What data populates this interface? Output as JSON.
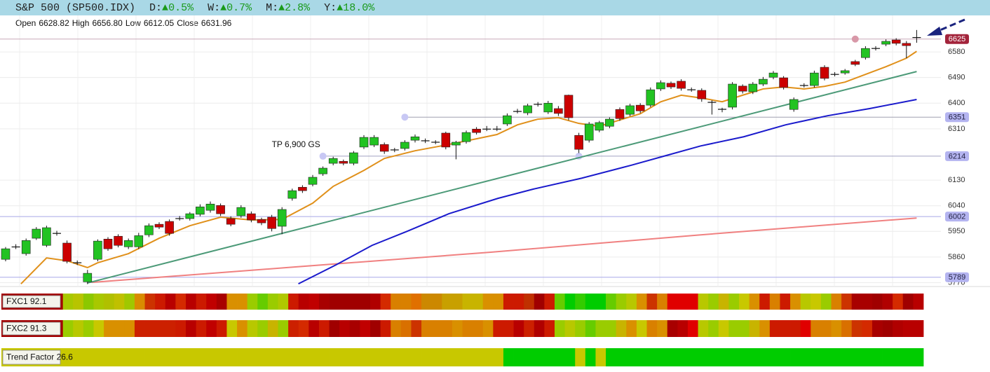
{
  "header": {
    "title": "S&P 500 (SP500.IDX)",
    "changes": [
      {
        "label": "D:",
        "arrow": "▲",
        "value": "0.5%"
      },
      {
        "label": "W:",
        "arrow": "▲",
        "value": "0.7%"
      },
      {
        "label": "M:",
        "arrow": "▲",
        "value": "2.8%"
      },
      {
        "label": "Y:",
        "arrow": "▲",
        "value": "18.0%"
      }
    ]
  },
  "ohlc": [
    {
      "label": "Open",
      "value": "6628.82"
    },
    {
      "label": "High",
      "value": "6656.80"
    },
    {
      "label": "Low",
      "value": "6612.05"
    },
    {
      "label": "Close",
      "value": "6631.96"
    }
  ],
  "chart_data": {
    "type": "candlestick",
    "up_color": "#22c322",
    "down_color": "#cc0000",
    "grid": true,
    "ylim": [
      5759,
      6708
    ],
    "yticks": [
      5770,
      5860,
      5950,
      6040,
      6130,
      6310,
      6400,
      6490,
      6580
    ],
    "open": [
      5852,
      5894,
      5872,
      5926,
      5901,
      5942,
      5909,
      5839,
      5773,
      5852,
      5923,
      5933,
      5896,
      5896,
      5938,
      5975,
      5985,
      5994,
      5995,
      6010,
      6024,
      6041,
      5995,
      6005,
      6012,
      5992,
      6000,
      5968,
      6066,
      6105,
      6115,
      6152,
      6189,
      6196,
      6189,
      6246,
      6253,
      6255,
      6235,
      6241,
      6270,
      6267,
      6262,
      6295,
      6253,
      6265,
      6309,
      6308,
      6308,
      6327,
      6370,
      6366,
      6395,
      6369,
      6381,
      6428,
      6287,
      6270,
      6305,
      6319,
      6378,
      6361,
      6393,
      6393,
      6450,
      6470,
      6477,
      6446,
      6445,
      6402,
      6381,
      6386,
      6460,
      6440,
      6467,
      6491,
      6489,
      6378,
      6461,
      6462,
      6526,
      6500,
      6506,
      6546,
      6560,
      6591,
      6607,
      6622,
      6610,
      6628.82
    ],
    "close": [
      5889,
      5897,
      5918,
      5958,
      5963,
      5944,
      5845,
      5841,
      5803,
      5916,
      5889,
      5901,
      5918,
      5935,
      5970,
      5965,
      5943,
      5996,
      6012,
      6036,
      6046,
      6012,
      5975,
      6034,
      5990,
      5980,
      5960,
      6027,
      6093,
      6093,
      6140,
      6172,
      6206,
      6189,
      6226,
      6280,
      6280,
      6231,
      6237,
      6263,
      6282,
      6269,
      6264,
      6246,
      6263,
      6297,
      6297,
      6310,
      6310,
      6356,
      6372,
      6391,
      6397,
      6400,
      6364,
      6349,
      6238,
      6327,
      6332,
      6344,
      6346,
      6391,
      6373,
      6447,
      6472,
      6457,
      6452,
      6448,
      6415,
      6404,
      6376,
      6467,
      6442,
      6467,
      6484,
      6506,
      6455,
      6413,
      6463,
      6506,
      6487,
      6502,
      6514,
      6536,
      6592,
      6593,
      6617,
      6610,
      6602,
      6631.96
    ],
    "high": [
      5895,
      5905,
      5925,
      5965,
      5970,
      5952,
      5918,
      5848,
      5815,
      5922,
      5930,
      5940,
      5925,
      5945,
      5978,
      5982,
      5992,
      6004,
      6018,
      6045,
      6055,
      6048,
      6003,
      6042,
      6020,
      5998,
      6008,
      6035,
      6100,
      6112,
      6148,
      6178,
      6212,
      6202,
      6232,
      6288,
      6288,
      6262,
      6243,
      6270,
      6290,
      6276,
      6270,
      6300,
      6268,
      6304,
      6316,
      6320,
      6320,
      6364,
      6380,
      6398,
      6404,
      6408,
      6390,
      6430,
      6296,
      6334,
      6338,
      6350,
      6385,
      6398,
      6400,
      6455,
      6480,
      6476,
      6484,
      6455,
      6452,
      6410,
      6384,
      6474,
      6466,
      6474,
      6492,
      6513,
      6495,
      6420,
      6470,
      6514,
      6533,
      6509,
      6520,
      6552,
      6600,
      6600,
      6624,
      6628,
      6618,
      6656.8
    ],
    "low": [
      5845,
      5888,
      5865,
      5920,
      5895,
      5935,
      5838,
      5832,
      5765,
      5845,
      5882,
      5894,
      5888,
      5888,
      5930,
      5958,
      5935,
      5988,
      5988,
      6003,
      6016,
      6004,
      5968,
      5998,
      5982,
      5972,
      5950,
      5940,
      6058,
      6085,
      6108,
      6145,
      6182,
      6182,
      6182,
      6239,
      6246,
      6222,
      6228,
      6234,
      6262,
      6260,
      6256,
      6238,
      6203,
      6258,
      6290,
      6302,
      6302,
      6320,
      6364,
      6358,
      6388,
      6362,
      6355,
      6340,
      6225,
      6262,
      6298,
      6312,
      6338,
      6354,
      6365,
      6386,
      6443,
      6450,
      6444,
      6440,
      6405,
      6360,
      6368,
      6378,
      6434,
      6432,
      6460,
      6484,
      6448,
      6370,
      6455,
      6455,
      6480,
      6494,
      6500,
      6530,
      6553,
      6585,
      6600,
      6603,
      6558,
      6612.05
    ],
    "lines": [
      {
        "color": "#f08080",
        "x": [
          8.4,
          28.2,
          47.4,
          67.9,
          89
        ],
        "values": [
          5771,
          5825,
          5877,
          5938,
          5997
        ]
      },
      {
        "color": "#4c9a78",
        "x": [
          8,
          89
        ],
        "values": [
          5769,
          6511
        ]
      },
      {
        "color": "#1a1acc",
        "x": [
          28.6,
          32.3,
          35.8,
          39.2,
          43.3,
          48.1,
          51.5,
          56.3,
          61.1,
          64.5,
          67.9,
          72.1,
          76.2,
          80.3,
          84.4,
          89
        ],
        "values": [
          5766,
          5833,
          5901,
          5950,
          6012,
          6066,
          6098,
          6137,
          6182,
          6216,
          6250,
          6282,
          6324,
          6356,
          6381,
          6413
        ]
      },
      {
        "color": "#e0901a",
        "x": [
          1.5,
          4,
          6,
          8,
          9,
          12,
          15,
          18,
          21,
          24,
          27,
          30,
          32,
          35,
          37,
          40,
          43,
          46,
          48,
          50,
          52,
          54,
          56,
          58,
          60,
          62,
          64,
          66,
          68,
          70,
          72,
          74,
          76,
          78,
          80,
          82,
          84,
          86,
          88,
          89
        ],
        "values": [
          5766,
          5857,
          5847,
          5823,
          5840,
          5872,
          5926,
          5970,
          6000,
          5990,
          5992,
          6049,
          6108,
          6164,
          6206,
          6233,
          6253,
          6275,
          6290,
          6324,
          6344,
          6349,
          6329,
          6319,
          6341,
          6363,
          6405,
          6428,
          6418,
          6405,
          6428,
          6450,
          6457,
          6450,
          6459,
          6474,
          6501,
          6528,
          6558,
          6582
        ]
      }
    ],
    "levels": [
      {
        "value": 6625,
        "color": "#a3243b",
        "text_color": "#ffffff",
        "line_color": "#c8a8b8",
        "dot_color": "#d898a8",
        "from": 0,
        "dots": [
          83
        ]
      },
      {
        "value": 6351,
        "color": "#b4b4f0",
        "text_color": "#222244",
        "line_color": "#a0a0b0",
        "dot_color": "#c8c8f4",
        "from": 39,
        "dots": [
          39
        ]
      },
      {
        "value": 6214,
        "color": "#b4b4f0",
        "text_color": "#222244",
        "line_color": "#a0a0c0",
        "dot_color": "#c8c8f4",
        "from": 31,
        "dots": [
          31,
          56
        ]
      },
      {
        "value": 6002,
        "color": "#b4b4f0",
        "text_color": "#222244",
        "line_color": "#a8a8e8",
        "dot_color": "#c8c8f4",
        "from": 0,
        "dots": []
      },
      {
        "value": 5789,
        "color": "#b4b4f0",
        "text_color": "#222244",
        "line_color": "#a8a8e8",
        "dot_color": "#c8c8f4",
        "from": 0,
        "dots": []
      }
    ],
    "annotations": [
      {
        "text": "TP 6,900 GS",
        "x": 26,
        "y": 6253
      }
    ]
  },
  "indicators": [
    {
      "label": "FXC1 92.1",
      "colors": [
        "#a30000",
        "#a30000",
        "#a30000",
        "#a30000",
        "#a30000",
        "#a30000",
        "#a8c800",
        "#b8c400",
        "#8cc800",
        "#a8c800",
        "#b0c000",
        "#c0c000",
        "#a0c800",
        "#d98c00",
        "#cc3300",
        "#cc1a00",
        "#b80000",
        "#d42a00",
        "#b80000",
        "#cc1a00",
        "#c00000",
        "#a80000",
        "#d99000",
        "#d99000",
        "#9acc00",
        "#66cc00",
        "#9acc00",
        "#b0c800",
        "#cc1a00",
        "#b80000",
        "#c00000",
        "#a80000",
        "#a00000",
        "#a00000",
        "#a00000",
        "#a00000",
        "#b00000",
        "#d42a00",
        "#d98000",
        "#d98000",
        "#e07000",
        "#cc8800",
        "#cc8800",
        "#c8a000",
        "#c8a000",
        "#c8b400",
        "#c8b400",
        "#d99000",
        "#d99000",
        "#cc1a00",
        "#cc1a00",
        "#c03000",
        "#a00000",
        "#cc1a00",
        "#66cc00",
        "#00cc00",
        "#33cc00",
        "#00cc00",
        "#00cc00",
        "#66cc00",
        "#9acc00",
        "#b8c800",
        "#d99000",
        "#cc3300",
        "#d98000",
        "#e00000",
        "#e00000",
        "#e00000",
        "#b8c800",
        "#9acc00",
        "#c8b400",
        "#9acc00",
        "#c8c800",
        "#d99000",
        "#cc1a00",
        "#d98000",
        "#cc1a00",
        "#d99000",
        "#b8c800",
        "#c8c800",
        "#9acc00",
        "#d98000",
        "#cc3300",
        "#a80000",
        "#a80000",
        "#a00000",
        "#b00000",
        "#d42a00",
        "#a00000",
        "#b80000"
      ]
    },
    {
      "label": "FXC2 91.3",
      "colors": [
        "#a30000",
        "#a30000",
        "#a30000",
        "#a30000",
        "#a30000",
        "#a30000",
        "#9acc00",
        "#b8c800",
        "#9acc00",
        "#c8c800",
        "#d99000",
        "#d99000",
        "#d99000",
        "#cc2000",
        "#cc2000",
        "#cc2000",
        "#cc2000",
        "#cc1a00",
        "#b80000",
        "#cc1a00",
        "#c00000",
        "#cc1a00",
        "#c8c800",
        "#d99000",
        "#b8c800",
        "#9acc00",
        "#c8b400",
        "#9acc00",
        "#cc2000",
        "#d42a00",
        "#b80000",
        "#cc1a00",
        "#a00000",
        "#b80000",
        "#a80000",
        "#c00000",
        "#a00000",
        "#cc1a00",
        "#d98000",
        "#d97000",
        "#cc3300",
        "#d98000",
        "#d98000",
        "#d98000",
        "#d99000",
        "#d98000",
        "#d98000",
        "#d99000",
        "#cc1a00",
        "#cc1a00",
        "#b80000",
        "#cc2000",
        "#b00000",
        "#cc1a00",
        "#9acc00",
        "#b8c800",
        "#9acc00",
        "#66cc00",
        "#9acc00",
        "#9acc00",
        "#c8b400",
        "#d99000",
        "#c8c800",
        "#d98000",
        "#d99000",
        "#a80000",
        "#b80000",
        "#e00000",
        "#b8c800",
        "#9acc00",
        "#c8c800",
        "#9acc00",
        "#9acc00",
        "#c8b400",
        "#d99000",
        "#cc1a00",
        "#cc1a00",
        "#cc1a00",
        "#e00000",
        "#d98000",
        "#d98000",
        "#d99000",
        "#d97000",
        "#cc3300",
        "#d42a00",
        "#a80000",
        "#a00000",
        "#b00000",
        "#b80000",
        "#b80000"
      ]
    },
    {
      "label": "Trend Factor 26.6",
      "colors": [
        "#c8c800",
        "#c8c800",
        "#c8c800",
        "#c8c800",
        "#c8c800",
        "#c8c800",
        "#c8c800",
        "#c8c800",
        "#c8c800",
        "#c8c800",
        "#c8c800",
        "#c8c800",
        "#c8c800",
        "#c8c800",
        "#c8c800",
        "#c8c800",
        "#c8c800",
        "#c8c800",
        "#c8c800",
        "#c8c800",
        "#c8c800",
        "#c8c800",
        "#c8c800",
        "#c8c800",
        "#c8c800",
        "#c8c800",
        "#c8c800",
        "#c8c800",
        "#c8c800",
        "#c8c800",
        "#c8c800",
        "#c8c800",
        "#c8c800",
        "#c8c800",
        "#c8c800",
        "#c8c800",
        "#c8c800",
        "#c8c800",
        "#c8c800",
        "#c8c800",
        "#c8c800",
        "#c8c800",
        "#c8c800",
        "#c8c800",
        "#c8c800",
        "#c8c800",
        "#c8c800",
        "#c8c800",
        "#c8c800",
        "#00cc00",
        "#00cc00",
        "#00cc00",
        "#00cc00",
        "#00cc00",
        "#00cc00",
        "#00cc00",
        "#c8c800",
        "#00cc00",
        "#c8c800",
        "#00cc00",
        "#00cc00",
        "#00cc00",
        "#00cc00",
        "#00cc00",
        "#00cc00",
        "#00cc00",
        "#00cc00",
        "#00cc00",
        "#00cc00",
        "#00cc00",
        "#00cc00",
        "#00cc00",
        "#00cc00",
        "#00cc00",
        "#00cc00",
        "#00cc00",
        "#00cc00",
        "#00cc00",
        "#00cc00",
        "#00cc00",
        "#00cc00",
        "#00cc00",
        "#00cc00",
        "#00cc00",
        "#00cc00",
        "#00cc00",
        "#00cc00",
        "#00cc00",
        "#00cc00",
        "#00cc00"
      ]
    }
  ]
}
